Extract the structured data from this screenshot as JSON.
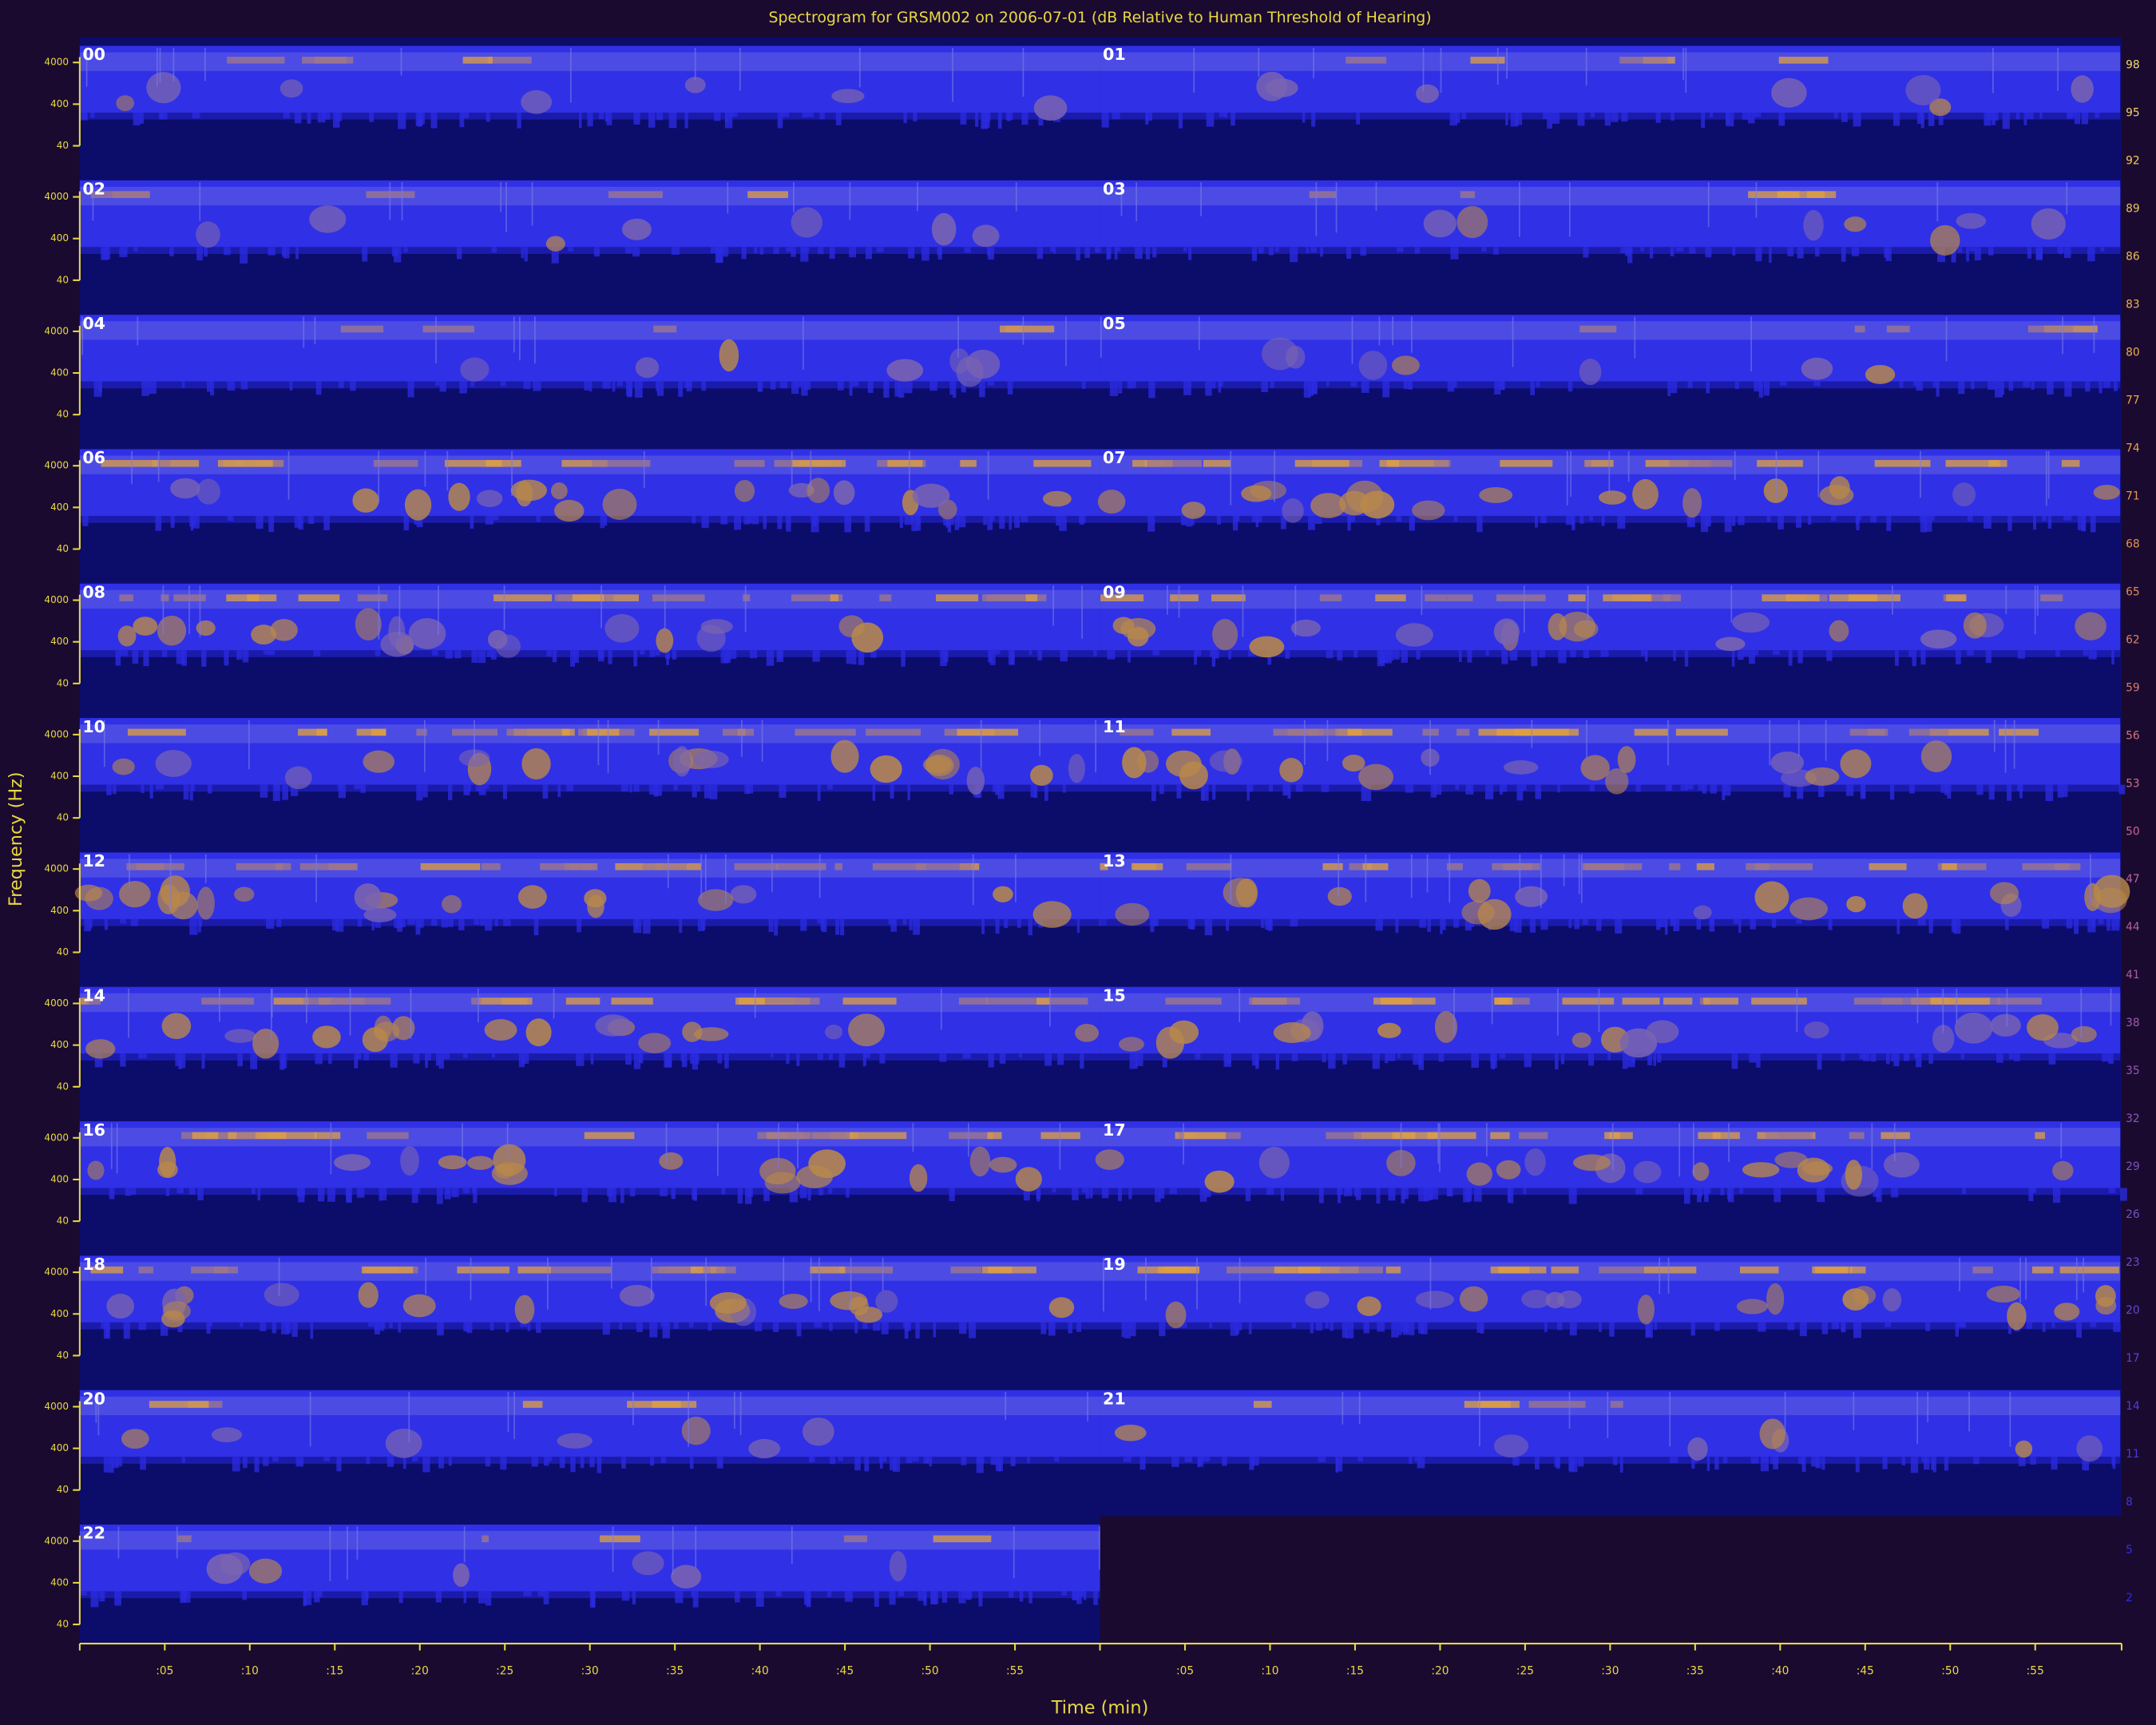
{
  "chart_data": {
    "type": "spectrogram",
    "title": "Spectrogram for GRSM002 on 2006-07-01 (dB Relative to Human Threshold of Hearing)",
    "x_label": "Time (min)",
    "y_label": "Frequency (Hz)",
    "panels": [
      "00",
      "01",
      "02",
      "03",
      "04",
      "05",
      "06",
      "07",
      "08",
      "09",
      "10",
      "11",
      "12",
      "13",
      "14",
      "15",
      "16",
      "17",
      "18",
      "19",
      "20",
      "21",
      "22"
    ],
    "xlim": [
      0,
      60
    ],
    "xticks": [
      {
        "value": 5,
        "label": ":05"
      },
      {
        "value": 10,
        "label": ":10"
      },
      {
        "value": 15,
        "label": ":15"
      },
      {
        "value": 20,
        "label": ":20"
      },
      {
        "value": 25,
        "label": ":25"
      },
      {
        "value": 30,
        "label": ":30"
      },
      {
        "value": 35,
        "label": ":35"
      },
      {
        "value": 40,
        "label": ":40"
      },
      {
        "value": 45,
        "label": ":45"
      },
      {
        "value": 50,
        "label": ":50"
      },
      {
        "value": 55,
        "label": ":55"
      }
    ],
    "ylim": [
      25,
      16000
    ],
    "yticks": [
      4000,
      400,
      40
    ],
    "log_y": true,
    "clim": [
      0,
      100
    ],
    "cticks": [
      98,
      95,
      92,
      89,
      86,
      83,
      80,
      77,
      74,
      71,
      68,
      65,
      62,
      59,
      56,
      53,
      50,
      47,
      44,
      41,
      38,
      35,
      32,
      29,
      26,
      23,
      20,
      17,
      14,
      11,
      8,
      5,
      2
    ],
    "colormap": [
      "#2828e8",
      "#7050c8",
      "#c86890",
      "#f0a040",
      "#f0e070"
    ],
    "axis_color": "#e8d840"
  }
}
